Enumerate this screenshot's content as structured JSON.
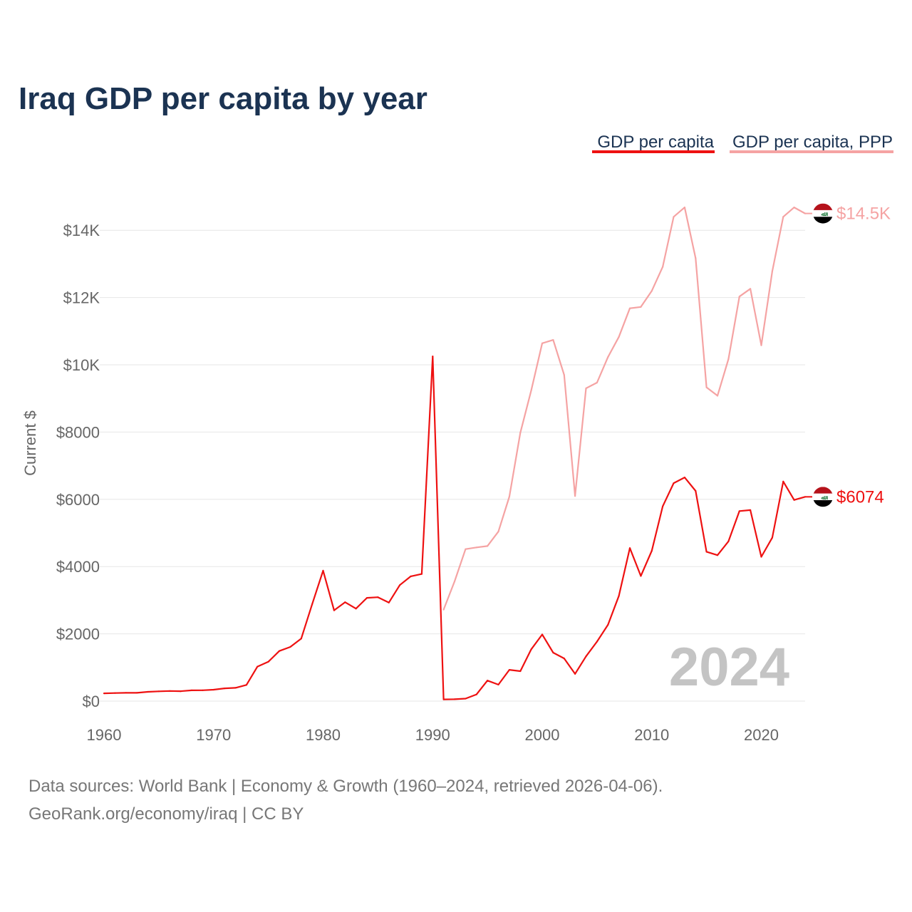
{
  "chart_data": {
    "type": "line",
    "title": "Iraq GDP per capita by year",
    "ylabel": "Current $",
    "xlabel": "",
    "xlim": [
      1960,
      2024
    ],
    "ylim": [
      0,
      15000
    ],
    "x_ticks": [
      1960,
      1970,
      1980,
      1990,
      2000,
      2010,
      2020
    ],
    "y_ticks": [
      0,
      2000,
      4000,
      6000,
      8000,
      10000,
      12000,
      14000
    ],
    "y_tick_labels": [
      "$0",
      "$2000",
      "$4000",
      "$6000",
      "$8000",
      "$10K",
      "$12K",
      "$14K"
    ],
    "watermark_year": "2024",
    "legend_position": "top-right",
    "series": [
      {
        "name": "GDP per capita",
        "color": "#ee1111",
        "end_label": "$6074",
        "x": [
          1960,
          1961,
          1962,
          1963,
          1964,
          1965,
          1966,
          1967,
          1968,
          1969,
          1970,
          1971,
          1972,
          1973,
          1974,
          1975,
          1976,
          1977,
          1978,
          1979,
          1980,
          1981,
          1982,
          1983,
          1984,
          1985,
          1986,
          1987,
          1988,
          1989,
          1990,
          1991,
          1992,
          1993,
          1994,
          1995,
          1996,
          1997,
          1998,
          1999,
          2000,
          2001,
          2002,
          2003,
          2004,
          2005,
          2006,
          2007,
          2008,
          2009,
          2010,
          2011,
          2012,
          2013,
          2014,
          2015,
          2016,
          2017,
          2018,
          2019,
          2020,
          2021,
          2022,
          2023,
          2024
        ],
        "values": [
          230,
          240,
          245,
          245,
          275,
          290,
          300,
          295,
          320,
          322,
          340,
          380,
          395,
          480,
          1025,
          1170,
          1490,
          1610,
          1860,
          2880,
          3880,
          2700,
          2940,
          2750,
          3070,
          3090,
          2930,
          3450,
          3710,
          3780,
          10250,
          50,
          55,
          75,
          200,
          610,
          490,
          930,
          890,
          1540,
          1980,
          1440,
          1270,
          810,
          1330,
          1770,
          2270,
          3130,
          4550,
          3720,
          4470,
          5790,
          6480,
          6650,
          6250,
          4440,
          4340,
          4750,
          5650,
          5680,
          4290,
          4860,
          6530,
          5980,
          6074
        ]
      },
      {
        "name": "GDP per capita, PPP",
        "color": "#f5a3a3",
        "end_label": "$14.5K",
        "x": [
          1991,
          1992,
          1993,
          1994,
          1995,
          1996,
          1997,
          1998,
          1999,
          2000,
          2001,
          2002,
          2003,
          2004,
          2005,
          2006,
          2007,
          2008,
          2009,
          2010,
          2011,
          2012,
          2013,
          2014,
          2015,
          2016,
          2017,
          2018,
          2019,
          2020,
          2021,
          2022,
          2023,
          2024
        ],
        "values": [
          2720,
          3560,
          4520,
          4570,
          4610,
          5040,
          6080,
          7980,
          9240,
          10640,
          10740,
          9700,
          6100,
          9300,
          9470,
          10230,
          10830,
          11680,
          11720,
          12200,
          12910,
          14400,
          14680,
          13170,
          9330,
          9080,
          10170,
          12030,
          12260,
          10580,
          12780,
          14400,
          14680,
          14500
        ]
      }
    ]
  },
  "source_line_1": "Data sources: World Bank | Economy & Growth (1960–2024, retrieved 2026-04-06).",
  "source_line_2": "GeoRank.org/economy/iraq | CC BY",
  "flag_icon": "iraq-flag-icon",
  "flag_text": "ﷲ",
  "colors": {
    "title": "#1b3352",
    "primary": "#ee1111",
    "secondary": "#f5a3a3",
    "muted": "#666666"
  }
}
